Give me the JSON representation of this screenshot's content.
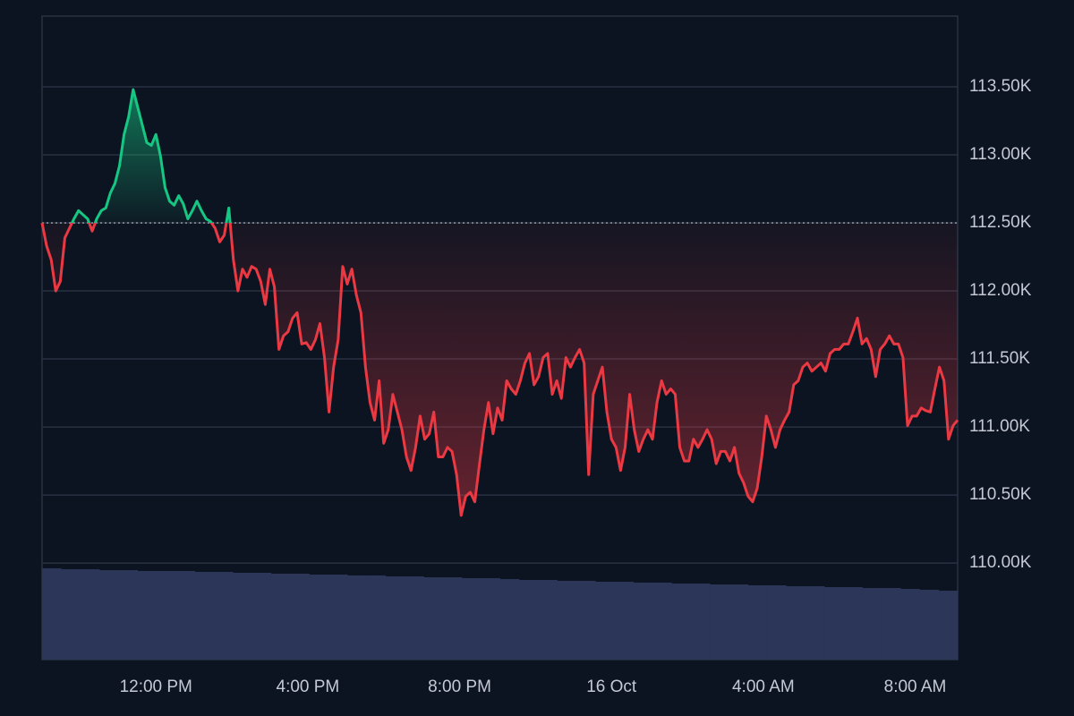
{
  "chart_data": {
    "type": "line",
    "x": [
      9,
      9.12,
      9.24,
      9.36,
      9.48,
      9.6,
      9.72,
      9.84,
      9.96,
      10.08,
      10.2,
      10.32,
      10.44,
      10.56,
      10.68,
      10.8,
      10.92,
      11.04,
      11.16,
      11.28,
      11.4,
      11.52,
      11.64,
      11.76,
      11.88,
      12,
      12.12,
      12.24,
      12.36,
      12.48,
      12.6,
      12.72,
      12.84,
      12.96,
      13.08,
      13.2,
      13.32,
      13.44,
      13.56,
      13.68,
      13.8,
      13.92,
      14.04,
      14.16,
      14.28,
      14.4,
      14.52,
      14.64,
      14.76,
      14.88,
      15,
      15.12,
      15.24,
      15.36,
      15.48,
      15.6,
      15.72,
      15.84,
      15.96,
      16.08,
      16.2,
      16.32,
      16.44,
      16.56,
      16.68,
      16.8,
      16.92,
      17.04,
      17.16,
      17.28,
      17.4,
      17.52,
      17.64,
      17.76,
      17.88,
      18,
      18.12,
      18.24,
      18.36,
      18.48,
      18.6,
      18.72,
      18.84,
      18.96,
      19.08,
      19.2,
      19.32,
      19.44,
      19.56,
      19.68,
      19.8,
      19.92,
      20.04,
      20.16,
      20.28,
      20.4,
      20.52,
      20.64,
      20.76,
      20.88,
      21,
      21.12,
      21.24,
      21.36,
      21.48,
      21.6,
      21.72,
      21.84,
      21.96,
      22.08,
      22.2,
      22.32,
      22.44,
      22.56,
      22.68,
      22.8,
      22.92,
      23.04,
      23.16,
      23.28,
      23.4,
      23.52,
      23.64,
      23.76,
      23.88,
      24,
      24.12,
      24.24,
      24.36,
      24.48,
      24.6,
      24.72,
      24.84,
      24.96,
      25.08,
      25.2,
      25.32,
      25.44,
      25.56,
      25.68,
      25.8,
      25.92,
      26.04,
      26.16,
      26.28,
      26.4,
      26.52,
      26.64,
      26.76,
      26.88,
      27,
      27.12,
      27.24,
      27.36,
      27.48,
      27.6,
      27.72,
      27.84,
      27.96,
      28.08,
      28.2,
      28.32,
      28.44,
      28.56,
      28.68,
      28.8,
      28.92,
      29.04,
      29.16,
      29.28,
      29.4,
      29.52,
      29.64,
      29.76,
      29.88,
      30,
      30.12,
      30.24,
      30.36,
      30.48,
      30.6,
      30.72,
      30.84,
      30.96,
      31.08,
      31.2,
      31.32,
      31.44,
      31.56,
      31.68,
      31.8,
      31.92,
      32.04,
      32.16,
      32.28,
      32.4,
      32.52,
      32.64,
      32.76,
      32.88,
      33,
      33.12
    ],
    "values": [
      112500,
      112330,
      112230,
      112000,
      112070,
      112390,
      112460,
      112530,
      112590,
      112560,
      112530,
      112440,
      112530,
      112590,
      112610,
      112720,
      112790,
      112920,
      113150,
      113280,
      113480,
      113350,
      113220,
      113090,
      113070,
      113150,
      112990,
      112760,
      112660,
      112630,
      112700,
      112640,
      112530,
      112590,
      112660,
      112590,
      112530,
      112510,
      112460,
      112360,
      112410,
      112610,
      112230,
      112000,
      112160,
      112100,
      112180,
      112160,
      112070,
      111900,
      112160,
      112030,
      111570,
      111670,
      111700,
      111800,
      111840,
      111610,
      111620,
      111570,
      111640,
      111760,
      111510,
      111110,
      111440,
      111640,
      112180,
      112050,
      112160,
      111970,
      111840,
      111440,
      111180,
      111050,
      111340,
      110880,
      110980,
      111240,
      111110,
      110980,
      110780,
      110680,
      110850,
      111080,
      110910,
      110950,
      111110,
      110780,
      110780,
      110850,
      110820,
      110650,
      110350,
      110490,
      110520,
      110450,
      110720,
      110980,
      111180,
      110950,
      111140,
      111050,
      111340,
      111280,
      111240,
      111340,
      111470,
      111540,
      111310,
      111370,
      111510,
      111540,
      111240,
      111340,
      111210,
      111510,
      111440,
      111510,
      111570,
      111470,
      110650,
      111240,
      111340,
      111440,
      111110,
      110910,
      110850,
      110680,
      110850,
      111240,
      110980,
      110820,
      110910,
      110980,
      110910,
      111180,
      111340,
      111240,
      111280,
      111240,
      110850,
      110750,
      110750,
      110910,
      110850,
      110910,
      110980,
      110910,
      110730,
      110820,
      110820,
      110750,
      110850,
      110660,
      110590,
      110490,
      110450,
      110550,
      110780,
      111080,
      110980,
      110850,
      110980,
      111050,
      111110,
      111310,
      111340,
      111440,
      111470,
      111410,
      111440,
      111470,
      111410,
      111540,
      111570,
      111570,
      111610,
      111610,
      111700,
      111800,
      111610,
      111650,
      111570,
      111370,
      111570,
      111610,
      111670,
      111610,
      111610,
      111510,
      111010,
      111080,
      111080,
      111140,
      111120,
      111110,
      111280,
      111440,
      111340,
      110910,
      111010,
      111050
    ],
    "baseline": 112500,
    "up_color": "#16c784",
    "down_color": "#ea3943",
    "xlim": [
      9,
      33.12
    ],
    "ylim": [
      109290,
      114020
    ],
    "xticks": [
      {
        "value": 12,
        "label": "12:00 PM"
      },
      {
        "value": 16,
        "label": "4:00 PM"
      },
      {
        "value": 20,
        "label": "8:00 PM"
      },
      {
        "value": 24,
        "label": "16 Oct"
      },
      {
        "value": 28,
        "label": "4:00 AM"
      },
      {
        "value": 32,
        "label": "8:00 AM"
      }
    ],
    "yticks": [
      {
        "value": 110000,
        "label": "110.00K"
      },
      {
        "value": 110500,
        "label": "110.50K"
      },
      {
        "value": 111000,
        "label": "111.00K"
      },
      {
        "value": 111500,
        "label": "111.50K"
      },
      {
        "value": 112000,
        "label": "112.00K"
      },
      {
        "value": 112500,
        "label": "112.50K"
      },
      {
        "value": 113000,
        "label": "113.00K"
      },
      {
        "value": 113500,
        "label": "113.50K"
      }
    ],
    "grid": true,
    "volume": {
      "color": "#2b3658",
      "y2lim": [
        0,
        110
      ],
      "values": [
        102,
        101,
        101,
        100,
        100,
        99,
        99,
        99,
        98,
        98,
        97,
        97,
        96,
        96,
        95,
        95,
        94,
        94,
        93,
        93,
        92,
        92,
        91,
        91,
        90,
        89,
        89,
        88,
        88,
        87,
        87,
        86,
        86,
        85,
        85,
        84,
        84,
        83,
        83,
        82,
        82,
        81,
        81,
        80,
        80,
        79,
        78,
        77
      ]
    }
  }
}
